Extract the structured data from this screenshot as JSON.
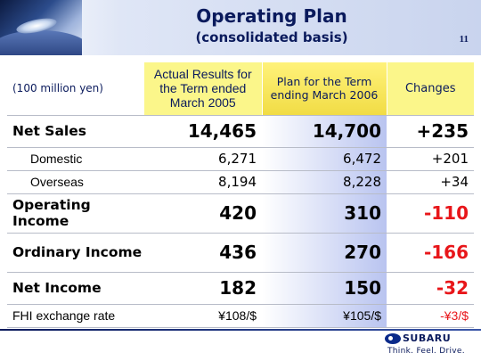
{
  "header": {
    "title": "Operating Plan",
    "subtitle": "(consolidated basis)",
    "page_number": "11"
  },
  "table": {
    "unit_label": "(100 million yen)",
    "columns": {
      "actual": "Actual Results for the Term ended March 2005",
      "plan": "Plan for the Term ending March 2006",
      "changes": "Changes"
    },
    "rows": [
      {
        "label": "Net Sales",
        "actual": "14,465",
        "plan": "14,700",
        "change": "+235"
      },
      {
        "label": "Domestic",
        "actual": "6,271",
        "plan": "6,472",
        "change": "+201"
      },
      {
        "label": "Overseas",
        "actual": "8,194",
        "plan": "8,228",
        "change": "+34"
      },
      {
        "label": "Operating Income",
        "actual": "420",
        "plan": "310",
        "change": "-110"
      },
      {
        "label": "Ordinary Income",
        "actual": "436",
        "plan": "270",
        "change": "-166"
      },
      {
        "label": "Net Income",
        "actual": "182",
        "plan": "150",
        "change": "-32"
      },
      {
        "label": "FHI exchange rate",
        "actual": "¥108/$",
        "plan": "¥105/$",
        "change": "-¥3/$"
      }
    ]
  },
  "brand": {
    "name": "SUBARU",
    "tagline": "Think. Feel. Drive."
  },
  "colors": {
    "title": "#0a1a5c",
    "negative": "#e8161a",
    "highlight": "#fbf68a"
  }
}
